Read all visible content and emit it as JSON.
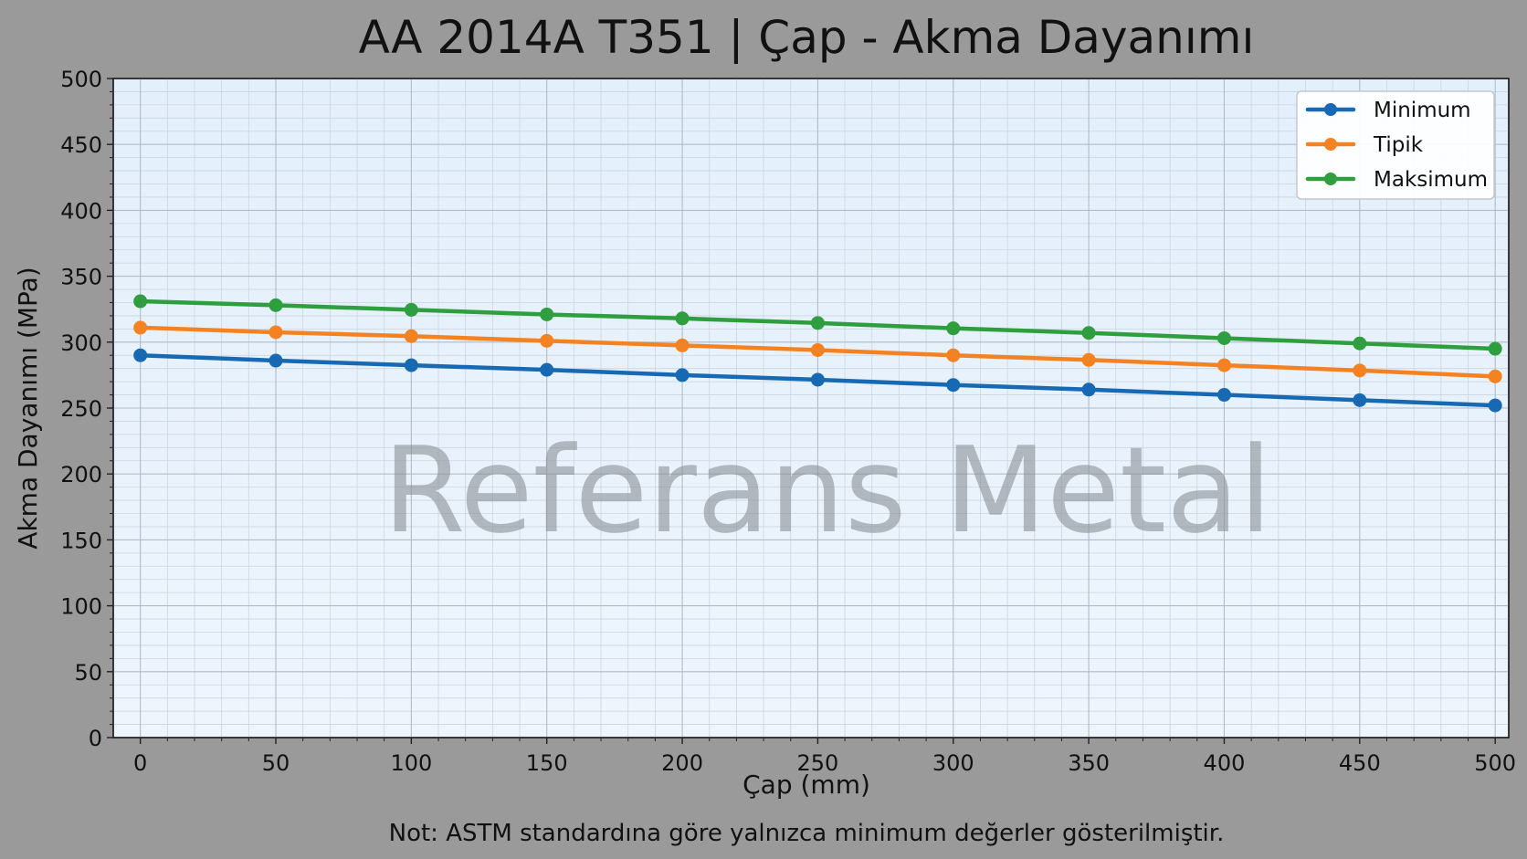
{
  "chart_data": {
    "type": "line",
    "title": "AA 2014A T351 | Çap - Akma Dayanımı",
    "xlabel": "Çap (mm)",
    "ylabel": "Akma Dayanımı (MPa)",
    "x": [
      0,
      50,
      100,
      150,
      200,
      250,
      300,
      350,
      400,
      450,
      500
    ],
    "xlim": [
      -10,
      505
    ],
    "ylim": [
      0,
      500
    ],
    "xticks": [
      "0",
      "50",
      "100",
      "150",
      "200",
      "250",
      "300",
      "350",
      "400",
      "450",
      "500"
    ],
    "yticks": [
      "0",
      "50",
      "100",
      "150",
      "200",
      "250",
      "300",
      "350",
      "400",
      "450",
      "500"
    ],
    "grid": true,
    "legend_position": "top-right",
    "series": [
      {
        "name": "Minimum",
        "color": "#1769b3",
        "values": [
          290,
          286,
          282.5,
          279,
          275,
          271.5,
          267.5,
          264,
          260,
          256,
          252
        ]
      },
      {
        "name": "Tipik",
        "color": "#f58220",
        "values": [
          311,
          307.5,
          304.5,
          301,
          297.5,
          294,
          290,
          286.5,
          282.5,
          278.5,
          274
        ]
      },
      {
        "name": "Maksimum",
        "color": "#2e9e3e",
        "values": [
          331,
          328,
          324.5,
          321,
          318,
          314.5,
          310.5,
          307,
          303,
          299,
          295
        ]
      }
    ]
  },
  "watermark": "Referans Metal",
  "note": "Not: ASTM standardına göre yalnızca minimum değerler gösterilmiştir."
}
